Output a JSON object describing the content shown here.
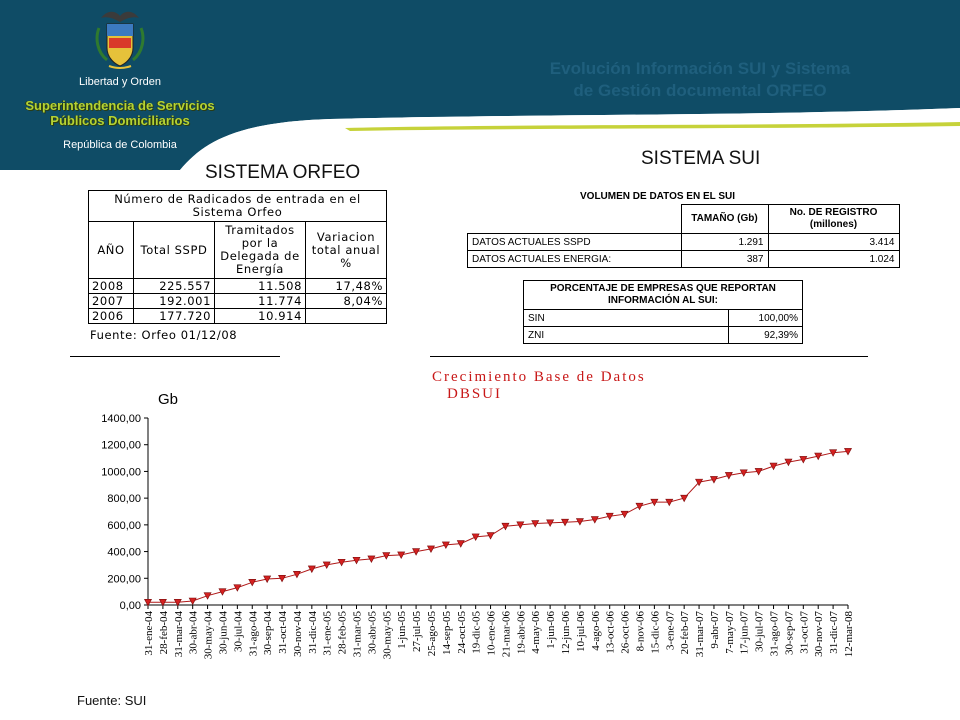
{
  "header": {
    "motto": "Libertad y Orden",
    "org_line1": "Superintendencia de Servicios",
    "org_line2": "Públicos Domiciliarios",
    "country": "República de Colombia",
    "title_line1": "Evolución Información SUI y Sistema",
    "title_line2": "de Gestión documental ORFEO",
    "colors": {
      "band": "#0f4c66",
      "accent": "#1f5f7d",
      "org_text": "#b5d334"
    },
    "icon": "coat-of-arms-icon"
  },
  "orfeo": {
    "section_title": "SISTEMA ORFEO",
    "caption": "Número  de Radicados de entrada en el Sistema Orfeo",
    "headers": [
      "AÑO",
      "Total SSPD",
      "Tramitados por la Delegada de Energía",
      "Variacion total anual %"
    ],
    "rows": [
      [
        "2008",
        "225.557",
        "11.508",
        "17,48%"
      ],
      [
        "2007",
        "192.001",
        "11.774",
        "8,04%"
      ],
      [
        "2006",
        "177.720",
        "10.914",
        ""
      ]
    ],
    "source": "Fuente: Orfeo 01/12/08"
  },
  "sui": {
    "section_title": "SISTEMA SUI",
    "volume": {
      "caption": "VOLUMEN DE DATOS EN EL SUI",
      "headers": [
        "TAMAÑO (Gb)",
        "No. DE REGISTRO (millones)"
      ],
      "rows": [
        [
          "DATOS ACTUALES SSPD",
          "1.291",
          "3.414"
        ],
        [
          "DATOS ACTUALES ENERGIA:",
          "387",
          "1.024"
        ]
      ]
    },
    "companies": {
      "header": "PORCENTAJE DE EMPRESAS QUE REPORTAN INFORMACIÓN AL SUI:",
      "rows": [
        [
          "SIN",
          "100,00%"
        ],
        [
          "ZNI",
          "92,39%"
        ]
      ]
    }
  },
  "chart_source": "Fuente: SUI",
  "chart_data": {
    "type": "line",
    "title": "Crecimiento Base de Datos",
    "subtitle": "DBSUI",
    "ylabel": "Gb",
    "ylim": [
      0,
      1400
    ],
    "yticks": [
      "0,00",
      "200,00",
      "400,00",
      "600,00",
      "800,00",
      "1000,00",
      "1200,00",
      "1400,00"
    ],
    "x": [
      "31-ene-04",
      "28-feb-04",
      "31-mar-04",
      "30-abr-04",
      "30-may-04",
      "30-jun-04",
      "30-jul-04",
      "31-ago-04",
      "30-sep-04",
      "31-oct-04",
      "30-nov-04",
      "31-dic-04",
      "31-ene-05",
      "28-feb-05",
      "31-mar-05",
      "30-abr-05",
      "30-may-05",
      "1-jun-05",
      "27-jul-05",
      "25-ago-05",
      "14-sep-05",
      "24-oct-05",
      "19-dic-05",
      "10-ene-06",
      "21-mar-06",
      "19-abr-06",
      "4-may-06",
      "1-jun-06",
      "12-jun-06",
      "10-jul-06",
      "4-ago-06",
      "13-oct-06",
      "26-oct-06",
      "8-nov-06",
      "15-dic-06",
      "3-ene-07",
      "20-feb-07",
      "31-mar-07",
      "9-abr-07",
      "7-may-07",
      "17-jun-07",
      "30-jul-07",
      "31-ago-07",
      "30-sep-07",
      "31-oct-07",
      "30-nov-07",
      "31-dic-07",
      "12-mar-08"
    ],
    "series": [
      {
        "values": [
          20,
          20,
          20,
          30,
          70,
          100,
          130,
          170,
          195,
          200,
          230,
          270,
          300,
          320,
          335,
          345,
          370,
          375,
          400,
          420,
          450,
          460,
          510,
          520,
          590,
          600,
          610,
          615,
          620,
          625,
          640,
          665,
          680,
          740,
          770,
          770,
          800,
          920,
          940,
          970,
          990,
          1000,
          1040,
          1070,
          1090,
          1115,
          1140,
          1150
        ]
      }
    ],
    "colors": {
      "line": "#b01818",
      "marker": "#d42020"
    },
    "grid": false
  }
}
